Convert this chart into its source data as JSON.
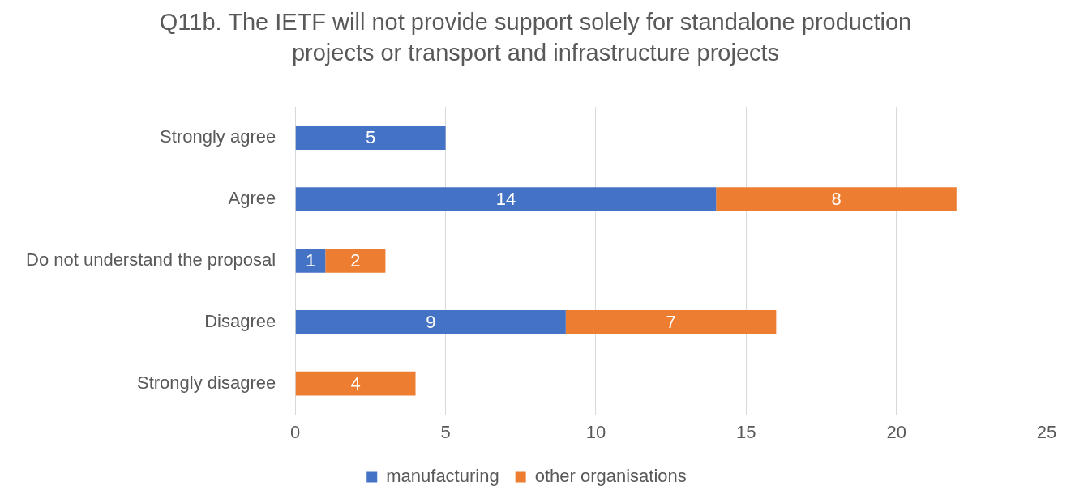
{
  "chart_data": {
    "type": "bar",
    "orientation": "horizontal",
    "stacked": true,
    "title": "Q11b. The IETF will not provide support solely for standalone production projects or transport and infrastructure projects",
    "categories": [
      "Strongly agree",
      "Agree",
      "Do not understand the proposal",
      "Disagree",
      "Strongly disagree"
    ],
    "series": [
      {
        "name": "manufacturing",
        "color": "#4472c4",
        "values": [
          5,
          14,
          1,
          9,
          null
        ]
      },
      {
        "name": "other organisations",
        "color": "#ed7d31",
        "values": [
          null,
          8,
          2,
          7,
          4
        ]
      }
    ],
    "xlim": [
      0,
      25
    ],
    "xticks": [
      0,
      5,
      10,
      15,
      20,
      25
    ],
    "grid": "x",
    "legend": "bottom",
    "data_labels": true
  }
}
